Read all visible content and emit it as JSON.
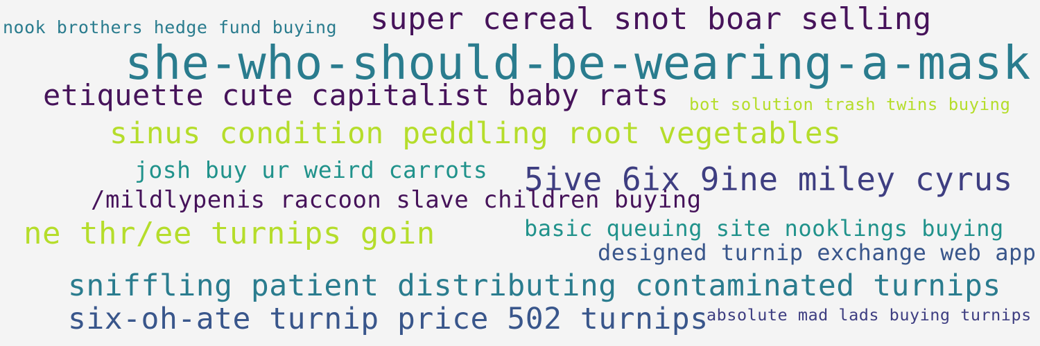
{
  "palette": {
    "background": "#f4f4f4",
    "dark_purple": "#46135a",
    "indigo": "#3e3e81",
    "blue": "#39568b",
    "teal": "#2a7c8e",
    "teal_green": "#20928b",
    "lime": "#b5dd2b"
  },
  "phrases": [
    {
      "text": "nook brothers hedge fund buying",
      "color": "#2a7c8e"
    },
    {
      "text": "super cereal snot boar selling",
      "color": "#46135a"
    },
    {
      "text": "she-who-should-be-wearing-a-mask",
      "color": "#2a7c8e"
    },
    {
      "text": "etiquette cute capitalist baby rats",
      "color": "#46135a"
    },
    {
      "text": "bot solution trash twins buying",
      "color": "#b5dd2b"
    },
    {
      "text": "sinus condition peddling root vegetables",
      "color": "#b5dd2b"
    },
    {
      "text": "josh buy ur weird carrots",
      "color": "#20928b"
    },
    {
      "text": "5ive 6ix 9ine miley cyrus",
      "color": "#3e3e81"
    },
    {
      "text": "/mildlypenis raccoon slave children buying",
      "color": "#46135a"
    },
    {
      "text": "ne thr/ee turnips goin",
      "color": "#b5dd2b"
    },
    {
      "text": "basic queuing site nooklings buying",
      "color": "#20928b"
    },
    {
      "text": "designed turnip exchange web app",
      "color": "#39568b"
    },
    {
      "text": "sniffling patient distributing contaminated turnips",
      "color": "#2a7c8e"
    },
    {
      "text": "six-oh-ate turnip price 502 turnips",
      "color": "#39568b"
    },
    {
      "text": "absolute mad lads buying turnips",
      "color": "#3e3e81"
    }
  ]
}
